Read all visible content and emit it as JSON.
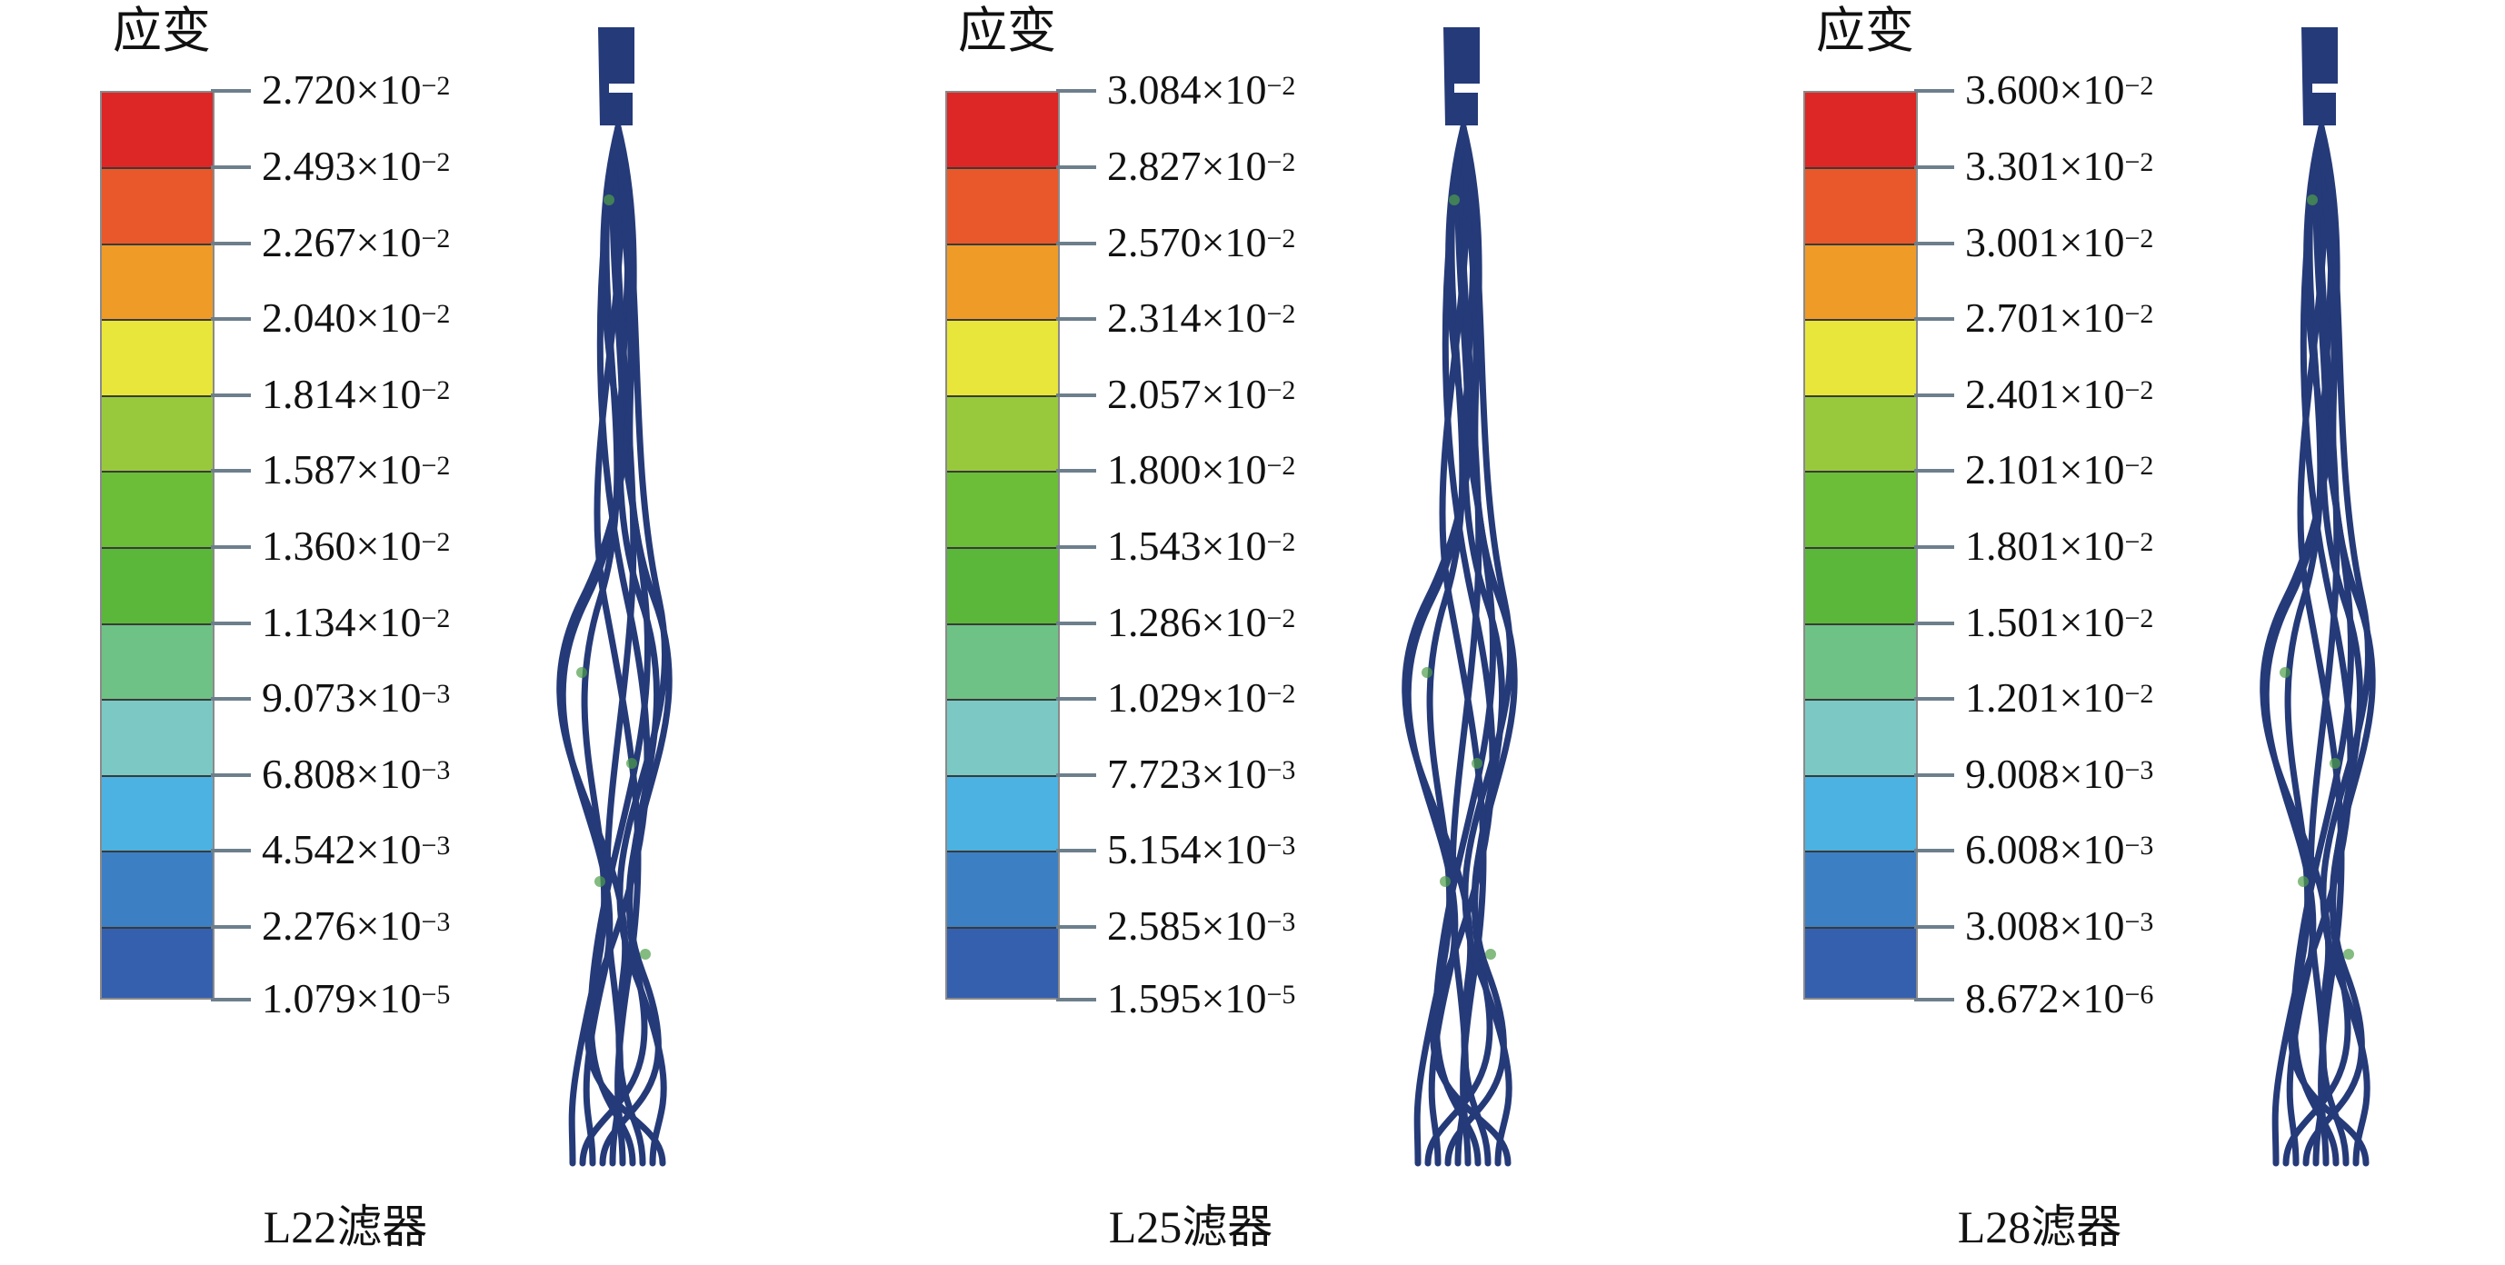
{
  "legend_title": "应变",
  "band_colors": [
    "#dd2626",
    "#e8582a",
    "#ef9b27",
    "#e8e63a",
    "#98c93c",
    "#6cbd37",
    "#5bb73a",
    "#6ec285",
    "#7cc8c4",
    "#4bb2e2",
    "#3d7fc3",
    "#3560ad",
    "#2f4e9f"
  ],
  "panels": [
    {
      "caption": "L22滤器",
      "labels": [
        {
          "m": "2.720",
          "e": "−2"
        },
        {
          "m": "2.493",
          "e": "−2"
        },
        {
          "m": "2.267",
          "e": "−2"
        },
        {
          "m": "2.040",
          "e": "−2"
        },
        {
          "m": "1.814",
          "e": "−2"
        },
        {
          "m": "1.587",
          "e": "−2"
        },
        {
          "m": "1.360",
          "e": "−2"
        },
        {
          "m": "1.134",
          "e": "−2"
        },
        {
          "m": "9.073",
          "e": "−3"
        },
        {
          "m": "6.808",
          "e": "−3"
        },
        {
          "m": "4.542",
          "e": "−3"
        },
        {
          "m": "2.276",
          "e": "−3"
        },
        {
          "m": "1.079",
          "e": "−5"
        }
      ]
    },
    {
      "caption": "L25滤器",
      "labels": [
        {
          "m": "3.084",
          "e": "−2"
        },
        {
          "m": "2.827",
          "e": "−2"
        },
        {
          "m": "2.570",
          "e": "−2"
        },
        {
          "m": "2.314",
          "e": "−2"
        },
        {
          "m": "2.057",
          "e": "−2"
        },
        {
          "m": "1.800",
          "e": "−2"
        },
        {
          "m": "1.543",
          "e": "−2"
        },
        {
          "m": "1.286",
          "e": "−2"
        },
        {
          "m": "1.029",
          "e": "−2"
        },
        {
          "m": "7.723",
          "e": "−3"
        },
        {
          "m": "5.154",
          "e": "−3"
        },
        {
          "m": "2.585",
          "e": "−3"
        },
        {
          "m": "1.595",
          "e": "−5"
        }
      ]
    },
    {
      "caption": "L28滤器",
      "labels": [
        {
          "m": "3.600",
          "e": "−2"
        },
        {
          "m": "3.301",
          "e": "−2"
        },
        {
          "m": "3.001",
          "e": "−2"
        },
        {
          "m": "2.701",
          "e": "−2"
        },
        {
          "m": "2.401",
          "e": "−2"
        },
        {
          "m": "2.101",
          "e": "−2"
        },
        {
          "m": "1.801",
          "e": "−2"
        },
        {
          "m": "1.501",
          "e": "−2"
        },
        {
          "m": "1.201",
          "e": "−2"
        },
        {
          "m": "9.008",
          "e": "−3"
        },
        {
          "m": "6.008",
          "e": "−3"
        },
        {
          "m": "3.008",
          "e": "−3"
        },
        {
          "m": "8.672",
          "e": "−6"
        }
      ]
    }
  ],
  "filter_color": "#253a78",
  "highlight_color": "#4f9e4a"
}
